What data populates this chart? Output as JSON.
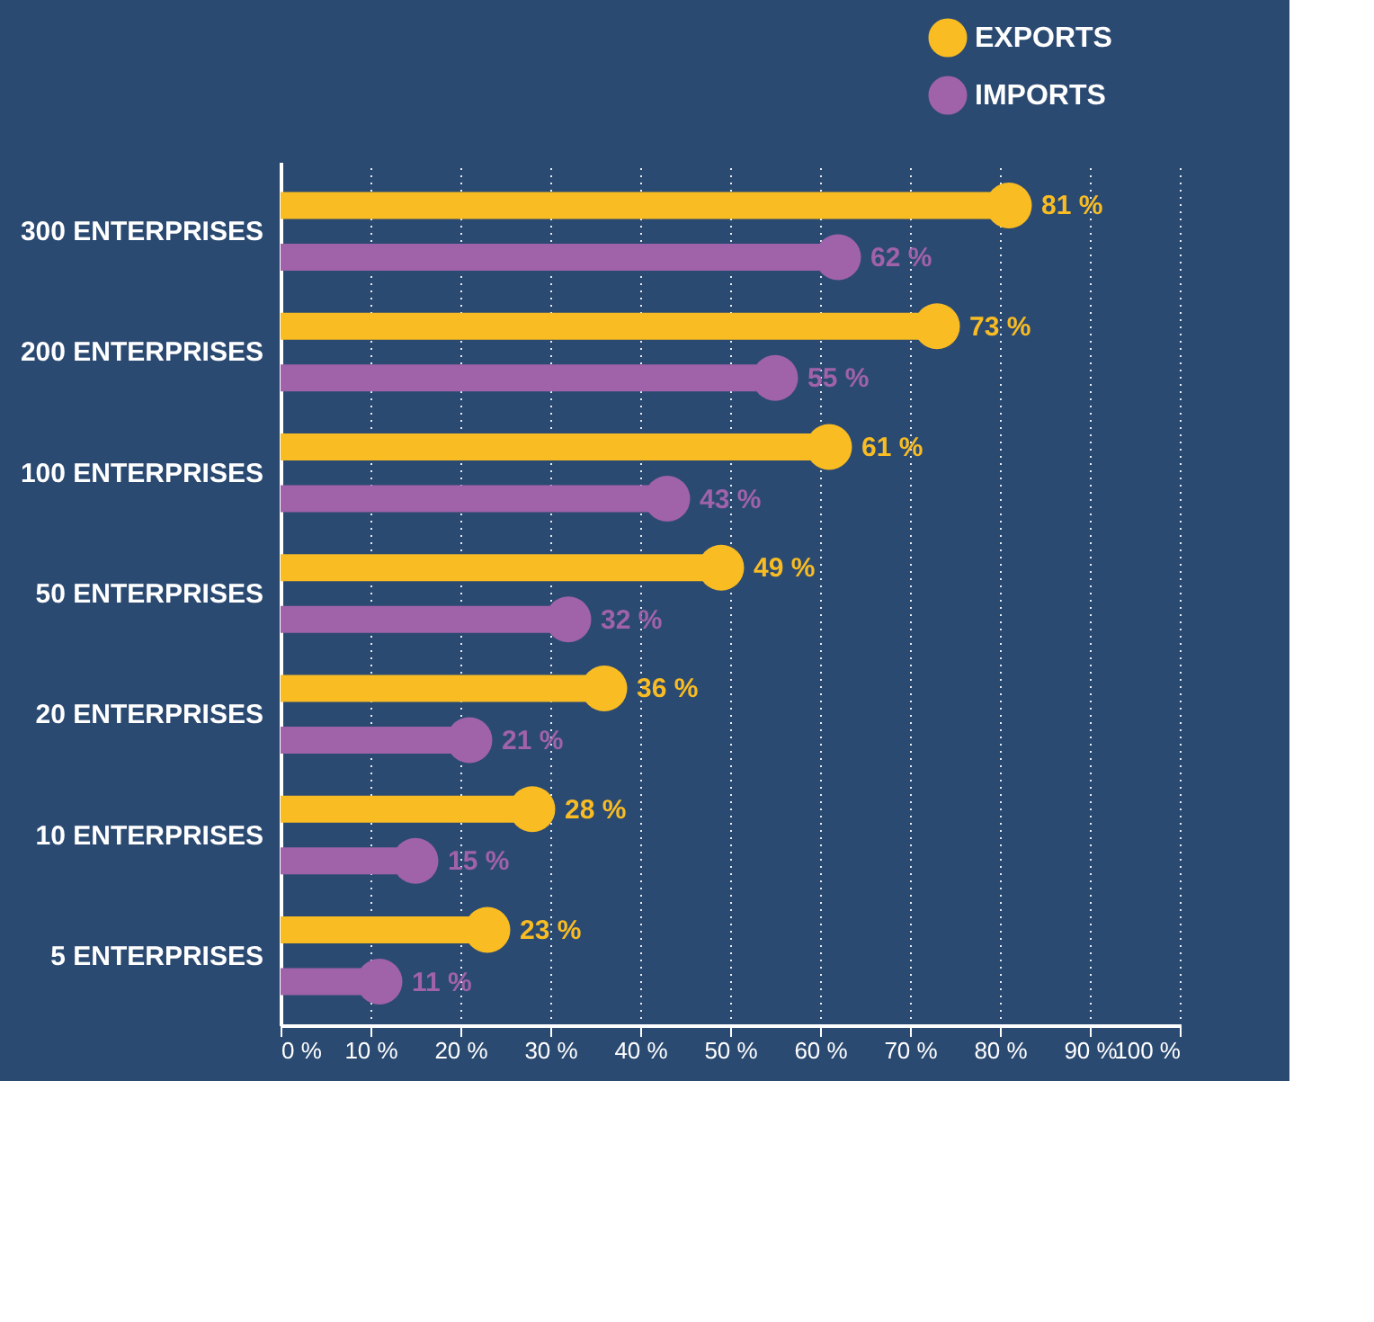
{
  "chart_data": {
    "type": "lollipop",
    "orientation": "horizontal",
    "marker": "circle",
    "grid": "x",
    "legend": "top right",
    "categories": [
      "300 ENTERPRISES",
      "200 ENTERPRISES",
      "100 ENTERPRISES",
      "50 ENTERPRISES",
      "20 ENTERPRISES",
      "10 ENTERPRISES",
      "5 ENTERPRISES"
    ],
    "series": [
      {
        "name": "EXPORTS",
        "color": "#f9bc22",
        "values": [
          81,
          73,
          61,
          49,
          36,
          28,
          23
        ],
        "value_labels": [
          "81 %",
          "73 %",
          "61 %",
          "49 %",
          "36 %",
          "28 %",
          "23 %"
        ]
      },
      {
        "name": "IMPORTS",
        "color": "#a062a8",
        "values": [
          62,
          55,
          43,
          32,
          21,
          15,
          11
        ],
        "value_labels": [
          "62 %",
          "55 %",
          "43 %",
          "32 %",
          "21 %",
          "15 %",
          "11 %"
        ]
      }
    ],
    "xlim": [
      0,
      100
    ],
    "xticks": [
      {
        "value": 0,
        "label": "0 %"
      },
      {
        "value": 10,
        "label": "10 %"
      },
      {
        "value": 20,
        "label": "20 %"
      },
      {
        "value": 30,
        "label": "30 %"
      },
      {
        "value": 40,
        "label": "40 %"
      },
      {
        "value": 50,
        "label": "50 %"
      },
      {
        "value": 60,
        "label": "60 %"
      },
      {
        "value": 70,
        "label": "70 %"
      },
      {
        "value": 80,
        "label": "80 %"
      },
      {
        "value": 90,
        "label": "90 %"
      },
      {
        "value": 100,
        "label": "100 %"
      }
    ]
  }
}
